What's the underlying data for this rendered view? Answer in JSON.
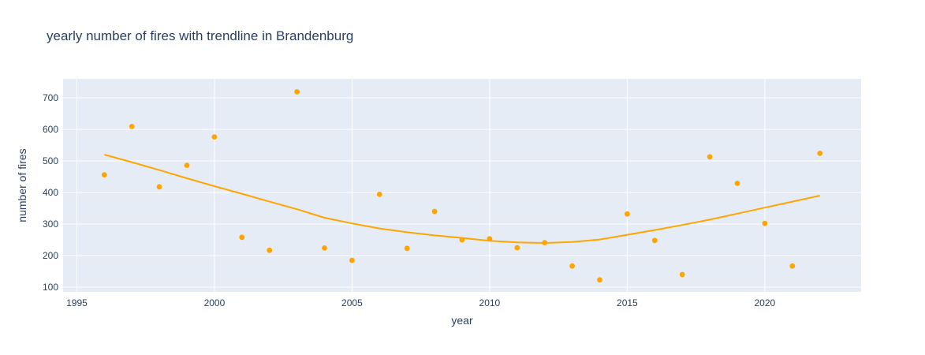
{
  "chart_data": {
    "type": "scatter",
    "title": "yearly number of fires with trendline in Brandenburg",
    "xlabel": "year",
    "ylabel": "number of fires",
    "xlim": [
      1994.5,
      2023.5
    ],
    "ylim": [
      85,
      760
    ],
    "xticks": [
      1995,
      2000,
      2005,
      2010,
      2015,
      2020
    ],
    "yticks": [
      100,
      200,
      300,
      400,
      500,
      600,
      700
    ],
    "grid": true,
    "legend": "none",
    "colors": {
      "marker": "#ffa500",
      "trendline": "#ffa500",
      "plot_bg": "#e5ecf6",
      "grid": "#ffffff",
      "text": "#2a3f5f"
    },
    "series": [
      {
        "mode": "markers",
        "x": [
          1996,
          1997,
          1998,
          1999,
          2000,
          2001,
          2002,
          2003,
          2004,
          2005,
          2006,
          2007,
          2008,
          2009,
          2010,
          2011,
          2012,
          2013,
          2014,
          2015,
          2016,
          2017,
          2018,
          2019,
          2020,
          2021,
          2022
        ],
        "y": [
          456,
          609,
          418,
          486,
          576,
          258,
          217,
          719,
          224,
          185,
          394,
          223,
          340,
          250,
          253,
          225,
          241,
          167,
          123,
          332,
          248,
          140,
          513,
          429,
          302,
          167,
          524
        ]
      },
      {
        "mode": "lines",
        "x": [
          1996,
          1997,
          1998,
          1999,
          2000,
          2001,
          2002,
          2003,
          2004,
          2005,
          2006,
          2007,
          2008,
          2009,
          2010,
          2011,
          2012,
          2013,
          2014,
          2015,
          2016,
          2017,
          2018,
          2019,
          2020,
          2021,
          2022
        ],
        "y": [
          520,
          496,
          471,
          445,
          420,
          396,
          371,
          347,
          320,
          302,
          286,
          274,
          264,
          256,
          247,
          242,
          240,
          243,
          251,
          266,
          281,
          297,
          314,
          333,
          352,
          371,
          390
        ]
      }
    ]
  }
}
